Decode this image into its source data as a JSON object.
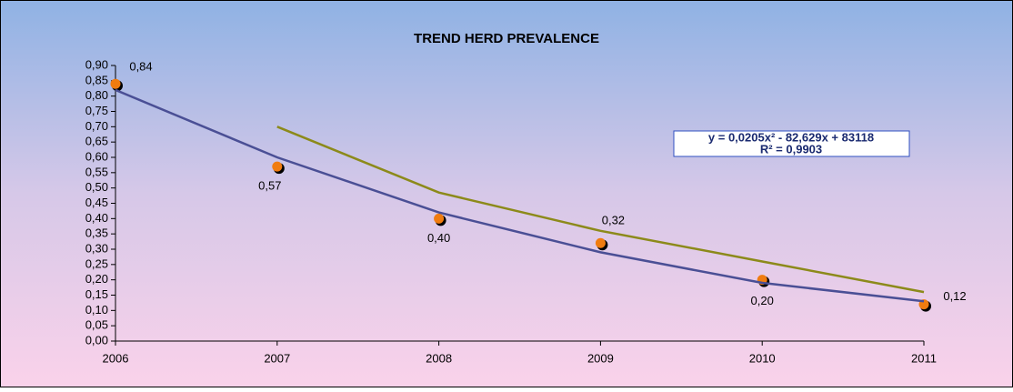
{
  "chart_data": {
    "type": "line",
    "title": "TREND HERD PREVALENCE",
    "x": [
      2006,
      2007,
      2008,
      2009,
      2010,
      2011
    ],
    "xlim": [
      2006,
      2011
    ],
    "xticks": [
      2006,
      2007,
      2008,
      2009,
      2010,
      2011
    ],
    "ylim": [
      0,
      0.9
    ],
    "yticks": [
      {
        "value": 0,
        "label": "0,00"
      },
      {
        "value": 0.05,
        "label": "0,05"
      },
      {
        "value": 0.1,
        "label": "0,10"
      },
      {
        "value": 0.15,
        "label": "0,15"
      },
      {
        "value": 0.2,
        "label": "0,20"
      },
      {
        "value": 0.25,
        "label": "0,25"
      },
      {
        "value": 0.3,
        "label": "0,30"
      },
      {
        "value": 0.35,
        "label": "0,35"
      },
      {
        "value": 0.4,
        "label": "0,40"
      },
      {
        "value": 0.45,
        "label": "0,45"
      },
      {
        "value": 0.5,
        "label": "0,50"
      },
      {
        "value": 0.55,
        "label": "0,55"
      },
      {
        "value": 0.6,
        "label": "0,60"
      },
      {
        "value": 0.65,
        "label": "0,65"
      },
      {
        "value": 0.7,
        "label": "0,70"
      },
      {
        "value": 0.75,
        "label": "0,75"
      },
      {
        "value": 0.8,
        "label": "0,80"
      },
      {
        "value": 0.85,
        "label": "0,85"
      },
      {
        "value": 0.9,
        "label": "0,90"
      }
    ],
    "series": [
      {
        "color": "#f07c10",
        "marker": true,
        "values": [
          0.84,
          0.57,
          0.4,
          0.32,
          0.2,
          0.12
        ],
        "value_labels": [
          "0,84",
          "0,57",
          "0,40",
          "0,32",
          "0,20",
          "0,12"
        ]
      },
      {
        "color": "#4a4f95",
        "marker": false,
        "values": [
          0.82,
          0.6,
          0.42,
          0.29,
          0.19,
          0.13
        ]
      },
      {
        "color": "#8c8a1a",
        "marker": false,
        "values": [
          null,
          0.7,
          0.485,
          0.36,
          0.26,
          0.16
        ]
      }
    ],
    "equation": "y = 0,0205x² - 82,629x + 83118",
    "r_squared": "R² = 0,9903"
  }
}
